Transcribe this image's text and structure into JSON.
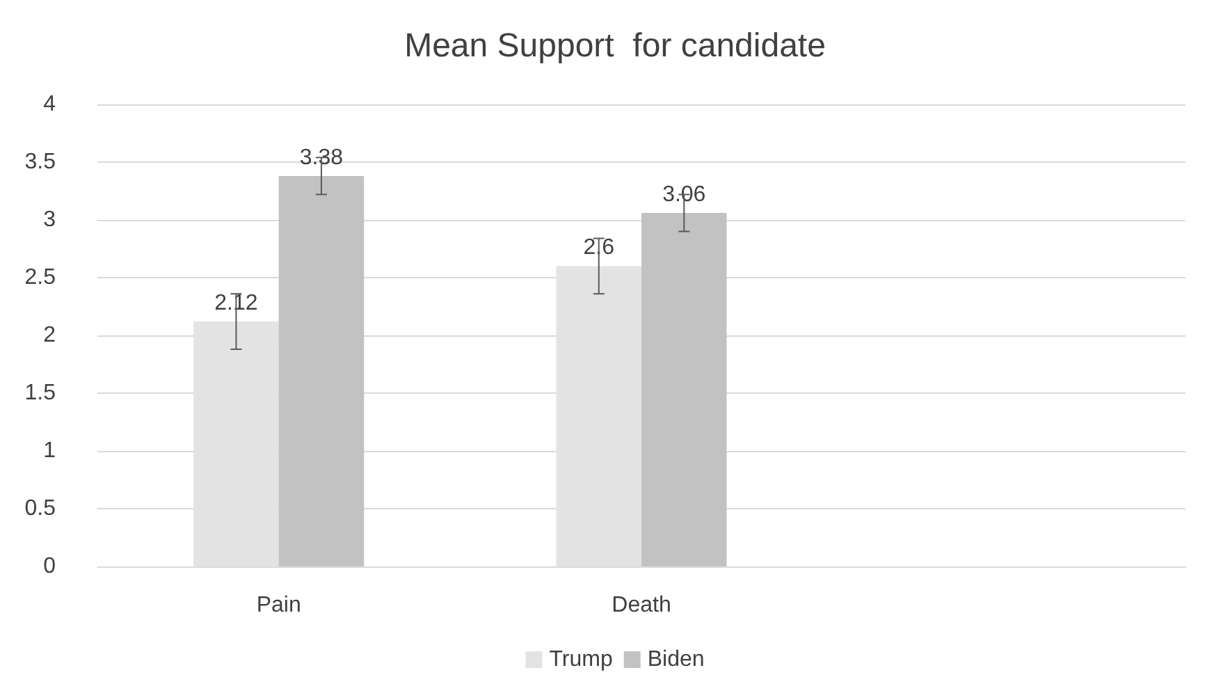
{
  "chart_data": {
    "type": "bar",
    "title": "Mean Support  for candidate",
    "categories": [
      "Pain",
      "Death",
      null
    ],
    "series": [
      {
        "name": "Trump",
        "color": "#e3e3e3",
        "values": [
          2.12,
          2.6,
          null
        ],
        "errors": [
          0.24,
          0.24,
          null
        ]
      },
      {
        "name": "Biden",
        "color": "#c2c2c2",
        "values": [
          3.38,
          3.06,
          null
        ],
        "errors": [
          0.16,
          0.16,
          null
        ]
      }
    ],
    "ylim": [
      0,
      4
    ],
    "yticks": [
      0,
      0.5,
      1,
      1.5,
      2,
      2.5,
      3,
      3.5,
      4
    ],
    "grid": "y",
    "legend": "bottom",
    "data_labels": true
  }
}
